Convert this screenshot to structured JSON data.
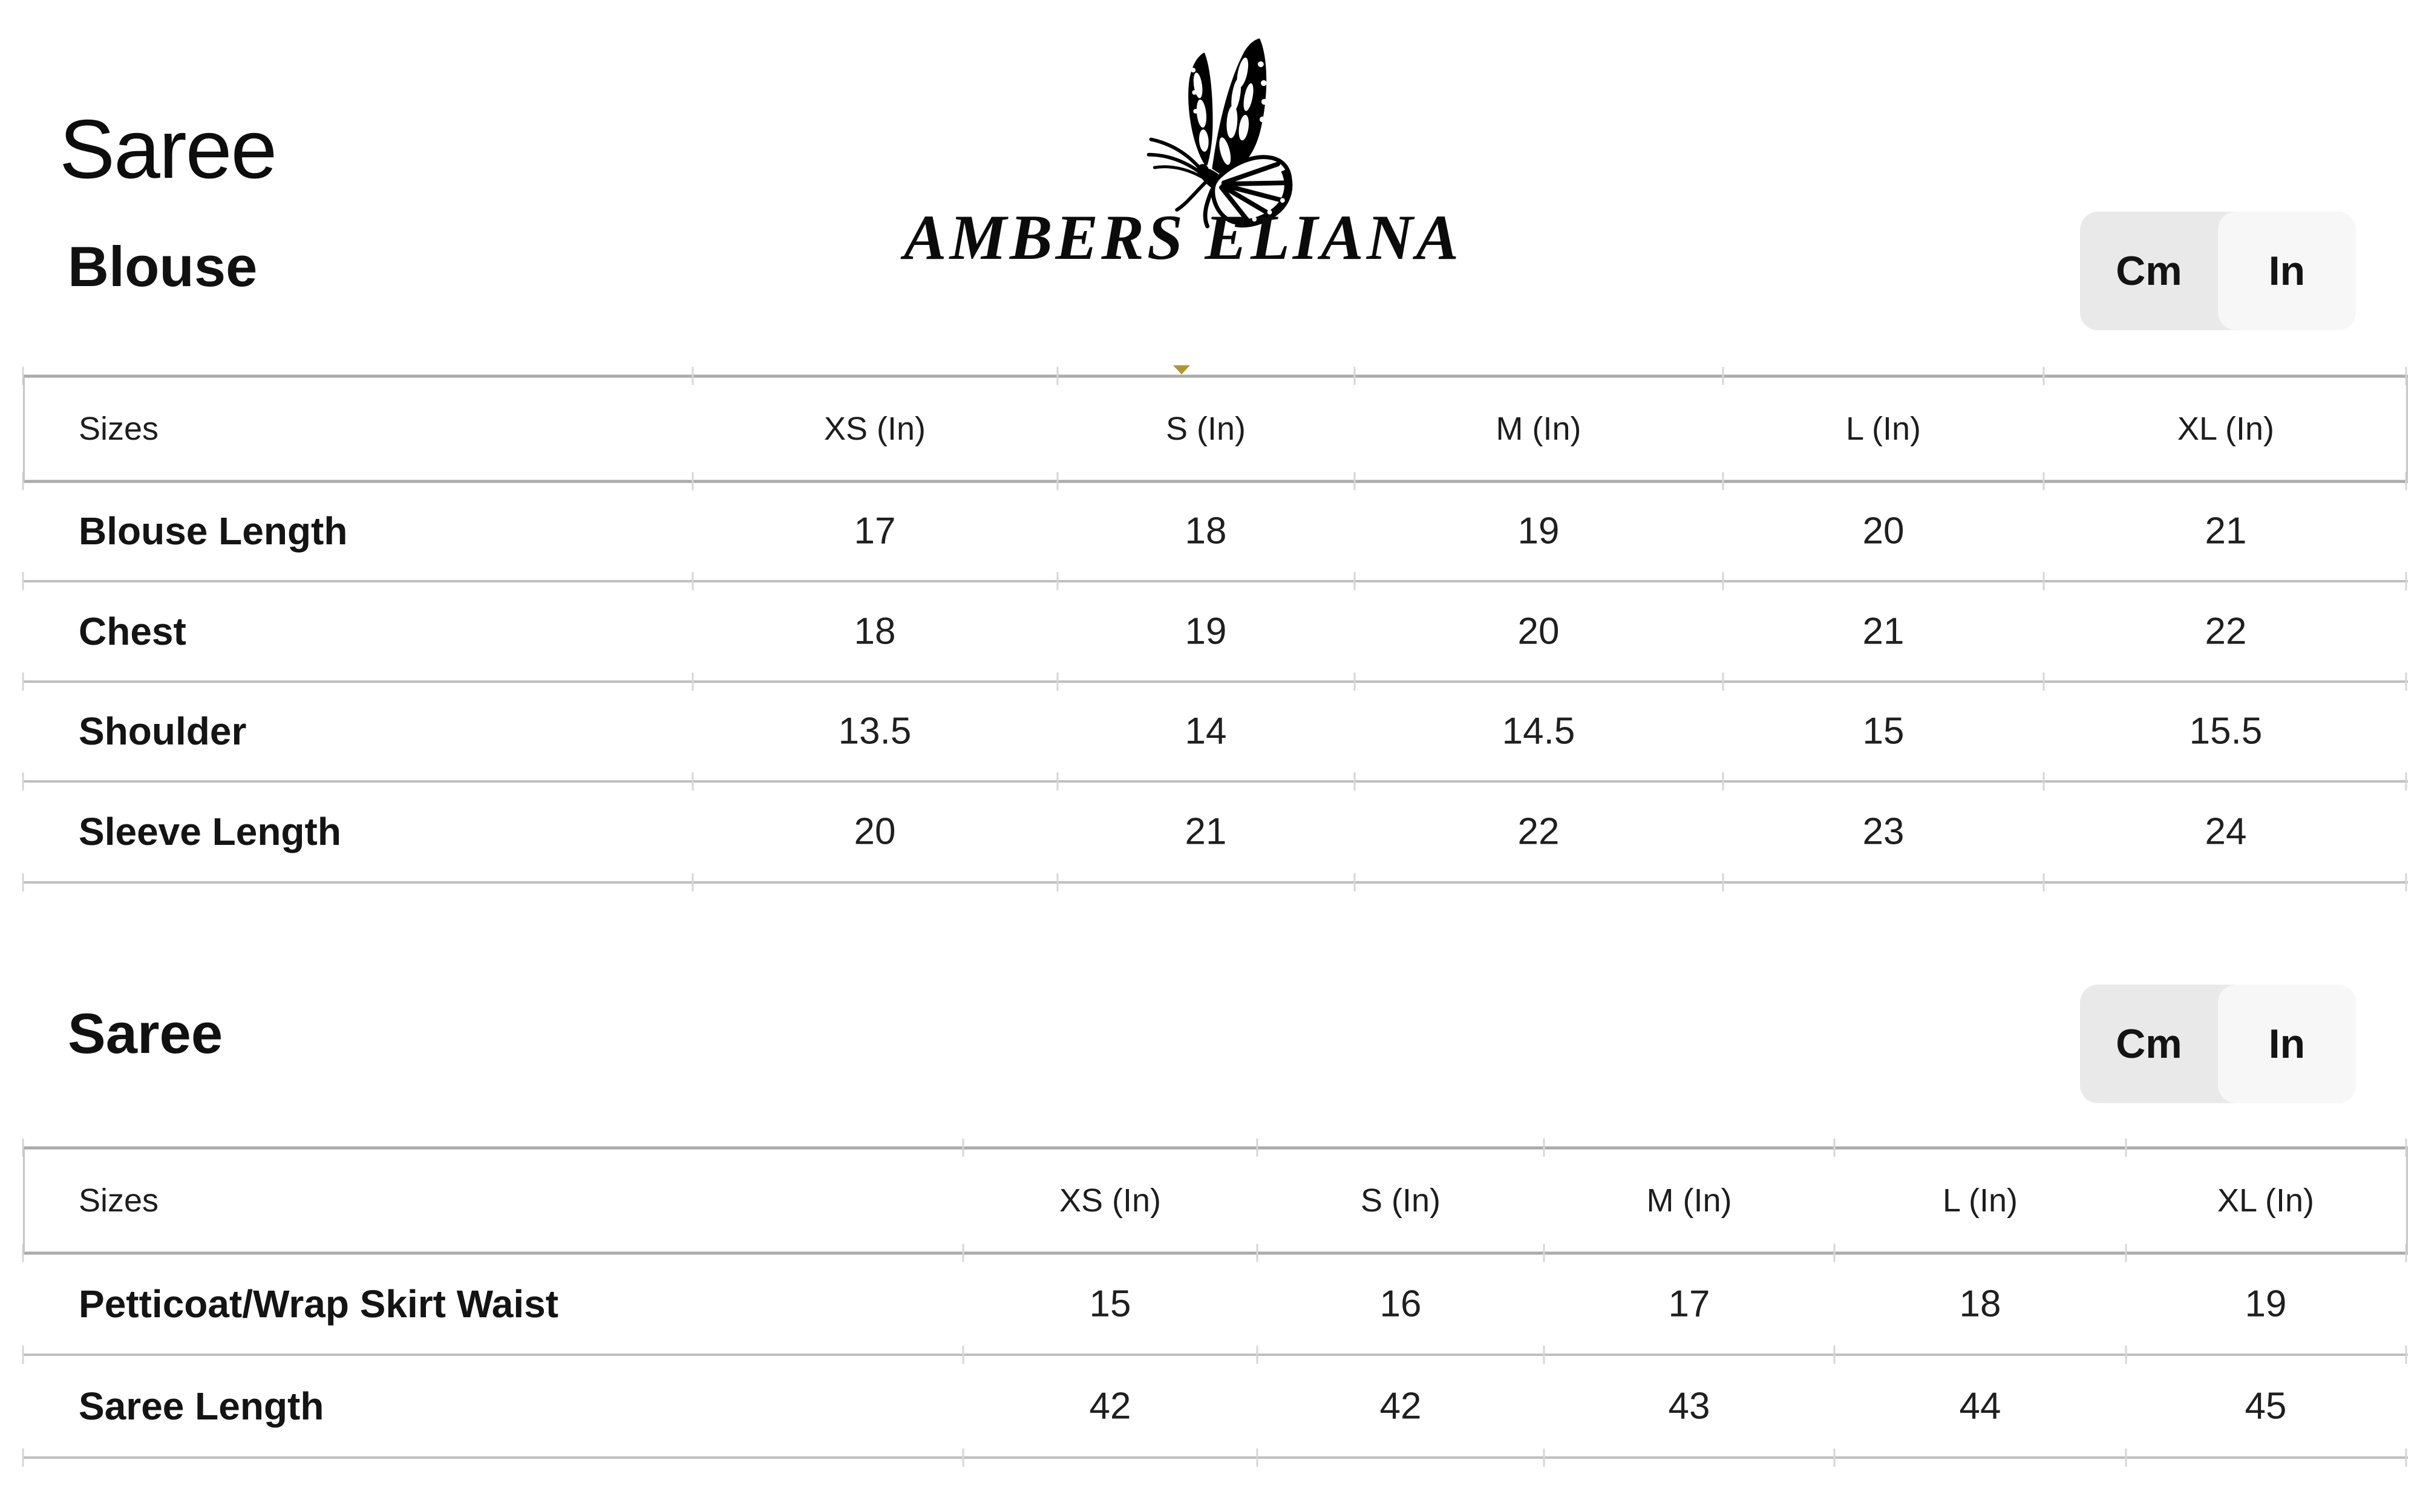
{
  "page": {
    "title": "Saree"
  },
  "logo": {
    "brand_name": "AMBERS ELIANA",
    "icon": "butterfly-icon"
  },
  "unit_toggle": {
    "options": [
      "Cm",
      "In"
    ],
    "selected": "In"
  },
  "colors": {
    "toggle_bg": "#e9e9e9",
    "toggle_active_bg": "#f7f7f7",
    "grid_line_strong": "#ababab",
    "grid_line_light": "#bfbfbf",
    "column_tick": "#d6d6d6",
    "accent_marker": "#b2952f",
    "text": "#1b1b1b"
  },
  "sections": [
    {
      "title": "Blouse",
      "table": {
        "columns": [
          "Sizes",
          "XS (In)",
          "S (In)",
          "M (In)",
          "L (In)",
          "XL (In)"
        ],
        "rows": [
          {
            "label": "Blouse Length",
            "values": [
              "17",
              "18",
              "19",
              "20",
              "21"
            ]
          },
          {
            "label": "Chest",
            "values": [
              "18",
              "19",
              "20",
              "21",
              "22"
            ]
          },
          {
            "label": "Shoulder",
            "values": [
              "13.5",
              "14",
              "14.5",
              "15",
              "15.5"
            ]
          },
          {
            "label": "Sleeve Length",
            "values": [
              "20",
              "21",
              "22",
              "23",
              "24"
            ]
          }
        ]
      }
    },
    {
      "title": "Saree",
      "table": {
        "columns": [
          "Sizes",
          "XS (In)",
          "S (In)",
          "M (In)",
          "L (In)",
          "XL (In)"
        ],
        "rows": [
          {
            "label": "Petticoat/Wrap Skirt Waist",
            "values": [
              "15",
              "16",
              "17",
              "18",
              "19"
            ]
          },
          {
            "label": "Saree Length",
            "values": [
              "42",
              "42",
              "43",
              "44",
              "45"
            ]
          }
        ]
      }
    }
  ]
}
